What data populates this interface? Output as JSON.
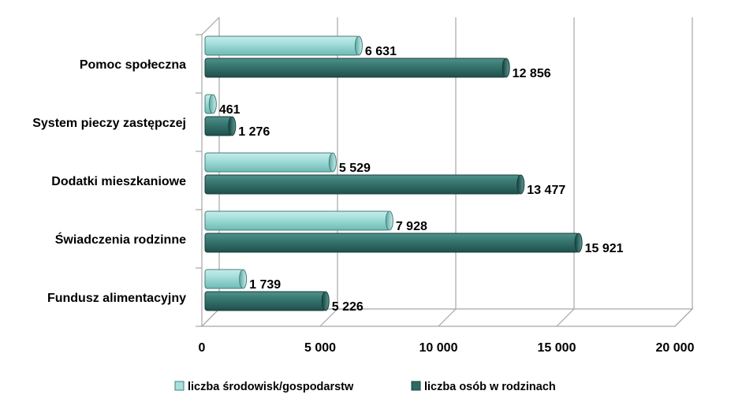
{
  "chart_data": {
    "type": "bar",
    "orientation": "horizontal",
    "style": "3d-cylinder",
    "categories": [
      "Pomoc społeczna",
      "System pieczy zastępczej",
      "Dodatki mieszkaniowe",
      "Świadczenia rodzinne",
      "Fundusz alimentacyjny"
    ],
    "series": [
      {
        "name": "liczba środowisk/gospodarstw",
        "color": "#8fd3d0",
        "values": [
          6631,
          461,
          5529,
          7928,
          1739
        ],
        "value_labels": [
          "6 631",
          "461",
          "5 529",
          "7 928",
          "1 739"
        ]
      },
      {
        "name": "liczba osób w rodzinach",
        "color": "#2e6b66",
        "values": [
          12856,
          1276,
          13477,
          15921,
          5226
        ],
        "value_labels": [
          "12 856",
          "1 276",
          "13 477",
          "15 921",
          "5 226"
        ]
      }
    ],
    "x_ticks": [
      0,
      5000,
      10000,
      15000,
      20000
    ],
    "x_tick_labels": [
      "0",
      "5 000",
      "10 000",
      "15 000",
      "20 000"
    ],
    "xlim": [
      0,
      20000
    ],
    "grid": true,
    "legend_position": "bottom"
  }
}
